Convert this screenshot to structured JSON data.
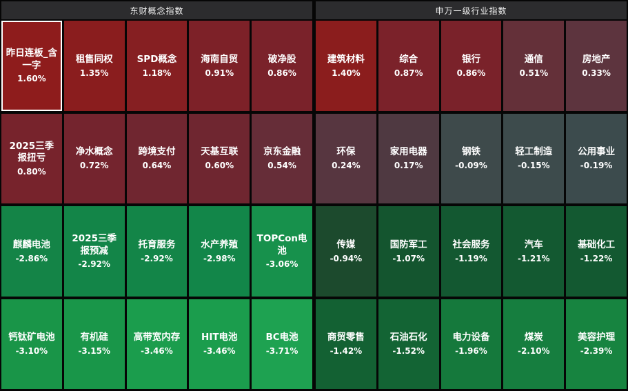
{
  "chart_data": {
    "type": "heatmap",
    "value_unit": "%",
    "color_convention": "red = gain, green = loss (CN market)",
    "accent_colors": {
      "gain_strong": "#8b1d1d",
      "flat": "#3d4b4c",
      "loss_strong": "#1ea251",
      "header_bg": "#2c2c2e",
      "gap": "#060606",
      "selected_border": "#ffffff"
    },
    "sections": [
      {
        "title": "东财概念指数",
        "cells": [
          {
            "label": "昨日连板_含一字",
            "value": 1.6,
            "display": "1.60%",
            "color": "#8e1c1c",
            "selected": true
          },
          {
            "label": "租售同权",
            "value": 1.35,
            "display": "1.35%",
            "color": "#8a1d1e",
            "selected": false
          },
          {
            "label": "SPD概念",
            "value": 1.18,
            "display": "1.18%",
            "color": "#861f22",
            "selected": false
          },
          {
            "label": "海南自贸",
            "value": 0.91,
            "display": "0.91%",
            "color": "#7d2128",
            "selected": false
          },
          {
            "label": "破净股",
            "value": 0.86,
            "display": "0.86%",
            "color": "#7a222a",
            "selected": false
          },
          {
            "label": "2025三季报扭亏",
            "value": 0.8,
            "display": "0.80%",
            "color": "#77232c",
            "selected": false
          },
          {
            "label": "净水概念",
            "value": 0.72,
            "display": "0.72%",
            "color": "#74242e",
            "selected": false
          },
          {
            "label": "跨境支付",
            "value": 0.64,
            "display": "0.64%",
            "color": "#702630",
            "selected": false
          },
          {
            "label": "天基互联",
            "value": 0.6,
            "display": "0.60%",
            "color": "#6f2630",
            "selected": false
          },
          {
            "label": "京东金融",
            "value": 0.54,
            "display": "0.54%",
            "color": "#662d38",
            "selected": false
          },
          {
            "label": "麒麟电池",
            "value": -2.86,
            "display": "-2.86%",
            "color": "#148447",
            "selected": false
          },
          {
            "label": "2025三季报预减",
            "value": -2.92,
            "display": "-2.92%",
            "color": "#138548",
            "selected": false
          },
          {
            "label": "托育服务",
            "value": -2.92,
            "display": "-2.92%",
            "color": "#138548",
            "selected": false
          },
          {
            "label": "水产养殖",
            "value": -2.98,
            "display": "-2.98%",
            "color": "#128649",
            "selected": false
          },
          {
            "label": "TOPCon电池",
            "value": -3.06,
            "display": "-3.06%",
            "color": "#17914c",
            "selected": false
          },
          {
            "label": "钙钛矿电池",
            "value": -3.1,
            "display": "-3.10%",
            "color": "#199548",
            "selected": false
          },
          {
            "label": "有机硅",
            "value": -3.15,
            "display": "-3.15%",
            "color": "#199649",
            "selected": false
          },
          {
            "label": "高带宽内存",
            "value": -3.46,
            "display": "-3.46%",
            "color": "#1b9d4d",
            "selected": false
          },
          {
            "label": "HIT电池",
            "value": -3.46,
            "display": "-3.46%",
            "color": "#1b9d4d",
            "selected": false
          },
          {
            "label": "BC电池",
            "value": -3.71,
            "display": "-3.71%",
            "color": "#1ea251",
            "selected": false
          }
        ]
      },
      {
        "title": "申万一级行业指数",
        "cells": [
          {
            "label": "建筑材料",
            "value": 1.4,
            "display": "1.40%",
            "color": "#8b1d1d",
            "selected": false
          },
          {
            "label": "综合",
            "value": 0.87,
            "display": "0.87%",
            "color": "#7b222a",
            "selected": false
          },
          {
            "label": "银行",
            "value": 0.86,
            "display": "0.86%",
            "color": "#7a222a",
            "selected": false
          },
          {
            "label": "通信",
            "value": 0.51,
            "display": "0.51%",
            "color": "#643039",
            "selected": false
          },
          {
            "label": "房地产",
            "value": 0.33,
            "display": "0.33%",
            "color": "#5d343e",
            "selected": false
          },
          {
            "label": "环保",
            "value": 0.24,
            "display": "0.24%",
            "color": "#573640",
            "selected": false
          },
          {
            "label": "家用电器",
            "value": 0.17,
            "display": "0.17%",
            "color": "#4f3941",
            "selected": false
          },
          {
            "label": "钢铁",
            "value": -0.09,
            "display": "-0.09%",
            "color": "#3e4a4b",
            "selected": false
          },
          {
            "label": "轻工制造",
            "value": -0.15,
            "display": "-0.15%",
            "color": "#3d4b4c",
            "selected": false
          },
          {
            "label": "公用事业",
            "value": -0.19,
            "display": "-0.19%",
            "color": "#3c4b4d",
            "selected": false
          },
          {
            "label": "传媒",
            "value": -0.94,
            "display": "-0.94%",
            "color": "#1c4a2d",
            "selected": false
          },
          {
            "label": "国防军工",
            "value": -1.07,
            "display": "-1.07%",
            "color": "#14552f",
            "selected": false
          },
          {
            "label": "社会服务",
            "value": -1.19,
            "display": "-1.19%",
            "color": "#135831",
            "selected": false
          },
          {
            "label": "汽车",
            "value": -1.21,
            "display": "-1.21%",
            "color": "#135931",
            "selected": false
          },
          {
            "label": "基础化工",
            "value": -1.22,
            "display": "-1.22%",
            "color": "#135931",
            "selected": false
          },
          {
            "label": "商贸零售",
            "value": -1.42,
            "display": "-1.42%",
            "color": "#136133",
            "selected": false
          },
          {
            "label": "石油石化",
            "value": -1.52,
            "display": "-1.52%",
            "color": "#136434",
            "selected": false
          },
          {
            "label": "电力设备",
            "value": -1.96,
            "display": "-1.96%",
            "color": "#15793c",
            "selected": false
          },
          {
            "label": "煤炭",
            "value": -2.1,
            "display": "-2.10%",
            "color": "#167e3f",
            "selected": false
          },
          {
            "label": "美容护理",
            "value": -2.39,
            "display": "-2.39%",
            "color": "#178440",
            "selected": false
          }
        ]
      }
    ]
  }
}
